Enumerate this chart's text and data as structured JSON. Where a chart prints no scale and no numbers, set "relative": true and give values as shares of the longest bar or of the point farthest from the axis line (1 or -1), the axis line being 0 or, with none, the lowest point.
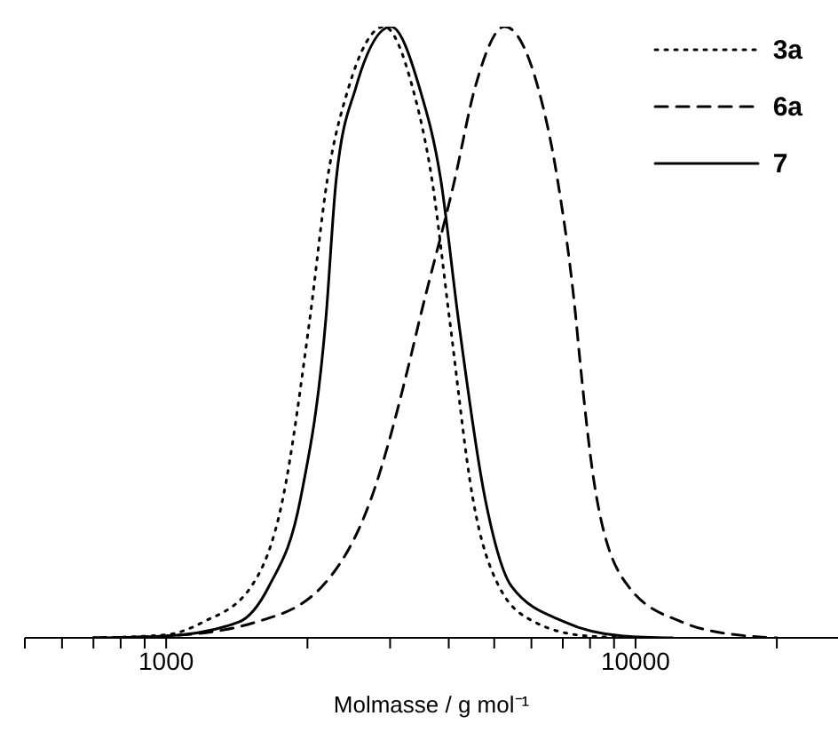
{
  "chart_data": {
    "type": "line",
    "xlabel": "Molmasse / g mol⁻¹",
    "relative": true,
    "log": "x",
    "legend": "top right",
    "marker": "none",
    "xlim": [
      500,
      27000
    ],
    "xticks": [
      {
        "value": 500,
        "label": null
      },
      {
        "value": 600,
        "label": null
      },
      {
        "value": 700,
        "label": null
      },
      {
        "value": 800,
        "label": null
      },
      {
        "value": 900,
        "label": null
      },
      1000,
      {
        "value": 2000,
        "label": null
      },
      {
        "value": 3000,
        "label": null
      },
      {
        "value": 4000,
        "label": null
      },
      {
        "value": 5000,
        "label": null
      },
      {
        "value": 6000,
        "label": null
      },
      {
        "value": 7000,
        "label": null
      },
      {
        "value": 8000,
        "label": null
      },
      {
        "value": 9000,
        "label": null
      },
      10000,
      {
        "value": 20000,
        "label": null
      }
    ],
    "series": [
      {
        "name": "3a",
        "color": "#000000",
        "line_style": "dotted",
        "x": [
          700,
          1000,
          1200,
          1518,
          1775,
          2022,
          2205,
          2447,
          2911,
          3350,
          3683,
          4018,
          4497,
          5119,
          6095,
          7907,
          10000
        ],
        "values": [
          0,
          0.005,
          0.026,
          0.084,
          0.23,
          0.52,
          0.75,
          0.9,
          1,
          0.9,
          0.75,
          0.52,
          0.23,
          0.084,
          0.026,
          0.003,
          0
        ]
      },
      {
        "name": "6a",
        "color": "#000000",
        "line_style": "dashed",
        "x": [
          700,
          1000,
          1557,
          2148,
          2740,
          3320,
          3465,
          4120,
          4550,
          5260,
          6200,
          6820,
          7470,
          7600,
          8260,
          9660,
          12540,
          17300,
          20000
        ],
        "values": [
          0,
          0.003,
          0.026,
          0.084,
          0.23,
          0.46,
          0.52,
          0.75,
          0.9,
          1,
          0.9,
          0.75,
          0.52,
          0.46,
          0.23,
          0.084,
          0.026,
          0.003,
          0
        ]
      },
      {
        "name": "7",
        "color": "#000000",
        "line_style": "solid",
        "x": [
          700,
          1000,
          1429,
          1655,
          1936,
          2188,
          2303,
          2535,
          3013,
          3465,
          3846,
          4195,
          4775,
          5445,
          7063,
          9415,
          12000
        ],
        "values": [
          0,
          0.003,
          0.026,
          0.084,
          0.23,
          0.52,
          0.75,
          0.9,
          1,
          0.9,
          0.75,
          0.52,
          0.23,
          0.084,
          0.026,
          0.003,
          0
        ]
      }
    ]
  }
}
